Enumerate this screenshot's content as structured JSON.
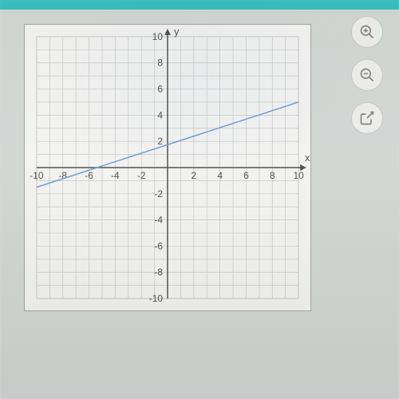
{
  "chart": {
    "type": "line",
    "xlim": [
      -10,
      10
    ],
    "ylim": [
      -10,
      10
    ],
    "grid_step": 1,
    "tick_step": 2,
    "x_ticks": [
      -10,
      -8,
      -6,
      -4,
      -2,
      2,
      4,
      6,
      8,
      10
    ],
    "y_ticks": [
      -10,
      -8,
      -6,
      -4,
      -2,
      2,
      4,
      6,
      8,
      10
    ],
    "x_label": "x",
    "y_label": "y",
    "axis_color": "#555555",
    "grid_color": "#cccccc",
    "background_color": "#f8f8f6",
    "tick_label_color": "#555555",
    "tick_label_fontsize": 12,
    "axis_label_fontsize": 13,
    "line": {
      "points": [
        [
          -10,
          -1.5
        ],
        [
          10,
          5
        ]
      ],
      "color": "#7a9fd6",
      "width": 1.5
    }
  },
  "controls": {
    "zoom_in": "zoom-in",
    "zoom_out": "zoom-out",
    "open_external": "open-external"
  },
  "colors": {
    "page_bg": "#d8dcd9",
    "top_bar": "#3bc4c4",
    "button_bg": "#f2f2f0",
    "button_border": "#cccccc",
    "button_icon": "#888888"
  }
}
